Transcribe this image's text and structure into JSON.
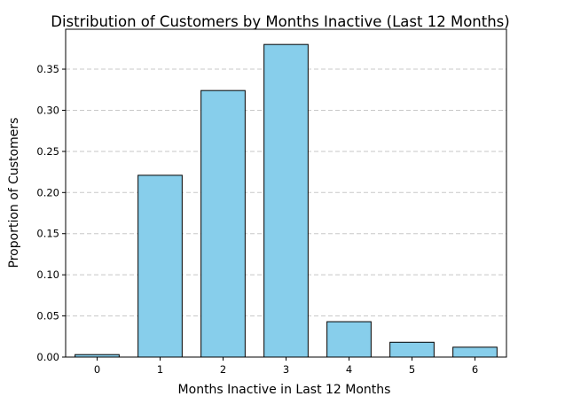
{
  "chart_data": {
    "type": "bar",
    "title": "Distribution of Customers by Months Inactive (Last 12 Months)",
    "xlabel": "Months Inactive in Last 12 Months",
    "ylabel": "Proportion of Customers",
    "categories": [
      "0",
      "1",
      "2",
      "3",
      "4",
      "5",
      "6"
    ],
    "values": [
      0.003,
      0.221,
      0.324,
      0.38,
      0.043,
      0.018,
      0.012
    ],
    "ylim": [
      0,
      0.3985
    ],
    "yticks": [
      0.0,
      0.05,
      0.1,
      0.15,
      0.2,
      0.25,
      0.3,
      0.35
    ],
    "ytick_labels": [
      "0.00",
      "0.05",
      "0.10",
      "0.15",
      "0.20",
      "0.25",
      "0.30",
      "0.35"
    ],
    "grid": "y-axis, dashed",
    "legend": "none",
    "colors": {
      "bar_fill": "#87CEEB",
      "bar_edge": "#000000",
      "grid": "#c8c8c8",
      "axis": "#000000"
    }
  }
}
